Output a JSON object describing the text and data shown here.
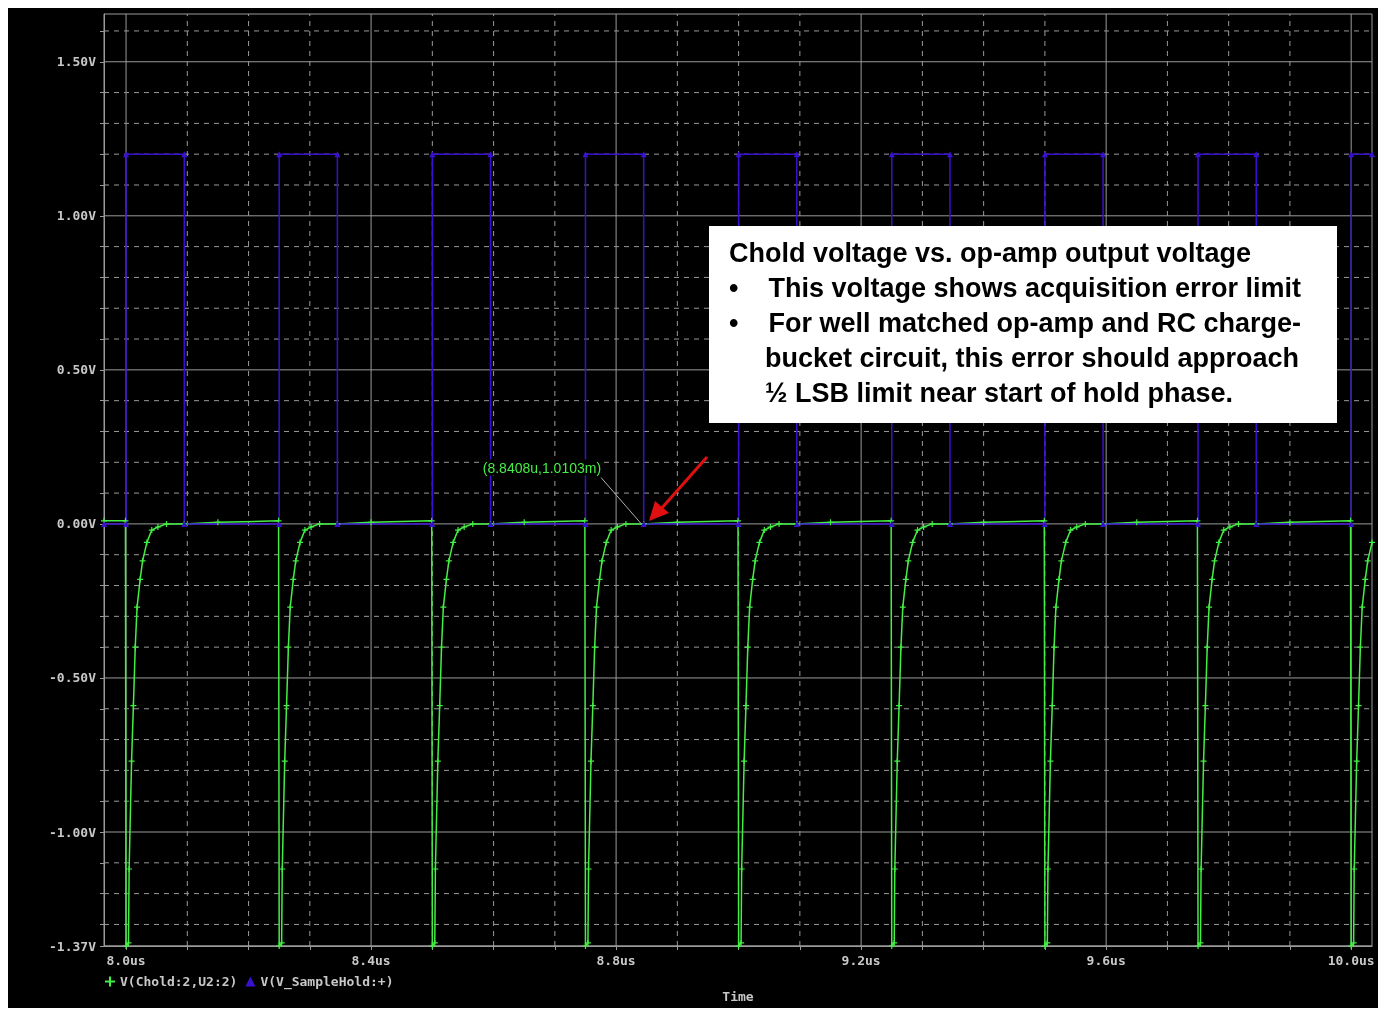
{
  "chart_data": {
    "type": "line",
    "xlabel": "Time",
    "xlim": [
      7.964,
      10.034
    ],
    "xticks": [
      {
        "value": 8.0,
        "label": "8.0us"
      },
      {
        "value": 8.1,
        "label": null
      },
      {
        "value": 8.2,
        "label": null
      },
      {
        "value": 8.3,
        "label": null
      },
      {
        "value": 8.4,
        "label": "8.4us"
      },
      {
        "value": 8.5,
        "label": null
      },
      {
        "value": 8.6,
        "label": null
      },
      {
        "value": 8.7,
        "label": null
      },
      {
        "value": 8.8,
        "label": "8.8us"
      },
      {
        "value": 8.9,
        "label": null
      },
      {
        "value": 9.0,
        "label": null
      },
      {
        "value": 9.1,
        "label": null
      },
      {
        "value": 9.2,
        "label": "9.2us"
      },
      {
        "value": 9.3,
        "label": null
      },
      {
        "value": 9.4,
        "label": null
      },
      {
        "value": 9.5,
        "label": null
      },
      {
        "value": 9.6,
        "label": "9.6us"
      },
      {
        "value": 9.7,
        "label": null
      },
      {
        "value": 9.8,
        "label": null
      },
      {
        "value": 9.9,
        "label": null
      },
      {
        "value": 10.0,
        "label": "10.0us"
      }
    ],
    "ylim": [
      -1.37,
      1.655
    ],
    "yticks": [
      {
        "value": 1.6,
        "label": null
      },
      {
        "value": 1.5,
        "label": "1.50V"
      },
      {
        "value": 1.4,
        "label": null
      },
      {
        "value": 1.3,
        "label": null
      },
      {
        "value": 1.2,
        "label": null
      },
      {
        "value": 1.1,
        "label": null
      },
      {
        "value": 1.0,
        "label": "1.00V"
      },
      {
        "value": 0.9,
        "label": null
      },
      {
        "value": 0.8,
        "label": null
      },
      {
        "value": 0.7,
        "label": null
      },
      {
        "value": 0.6,
        "label": null
      },
      {
        "value": 0.5,
        "label": "0.50V"
      },
      {
        "value": 0.4,
        "label": null
      },
      {
        "value": 0.3,
        "label": null
      },
      {
        "value": 0.2,
        "label": null
      },
      {
        "value": 0.1,
        "label": null
      },
      {
        "value": 0,
        "label": "0.00V"
      },
      {
        "value": -0.1,
        "label": null
      },
      {
        "value": -0.2,
        "label": null
      },
      {
        "value": -0.3,
        "label": null
      },
      {
        "value": -0.4,
        "label": null
      },
      {
        "value": -0.5,
        "label": "-0.50V"
      },
      {
        "value": -0.6,
        "label": null
      },
      {
        "value": -0.7,
        "label": null
      },
      {
        "value": -0.8,
        "label": null
      },
      {
        "value": -0.9,
        "label": null
      },
      {
        "value": -1.0,
        "label": "-1.00V"
      },
      {
        "value": -1.1,
        "label": null
      },
      {
        "value": -1.2,
        "label": null
      },
      {
        "value": -1.3,
        "label": null
      },
      {
        "value": -1.37,
        "label": "-1.37V"
      }
    ],
    "grid": true,
    "legend": "bottom left",
    "series": [
      {
        "name": "V(Chold:2,U2:2)",
        "color": "#44ee44",
        "marker": "cross",
        "x": [
          7.964,
          7.999,
          8.0,
          8.004,
          8.005,
          8.009,
          8.012,
          8.015,
          8.018,
          8.023,
          8.027,
          8.034,
          8.042,
          8.052,
          8.066,
          8.095,
          8.15,
          8.249,
          8.25,
          8.254,
          8.255,
          8.259,
          8.262,
          8.265,
          8.268,
          8.273,
          8.277,
          8.284,
          8.292,
          8.302,
          8.316,
          8.345,
          8.4,
          8.499,
          8.5,
          8.504,
          8.505,
          8.509,
          8.512,
          8.515,
          8.518,
          8.523,
          8.527,
          8.534,
          8.542,
          8.552,
          8.566,
          8.595,
          8.65,
          8.749,
          8.75,
          8.754,
          8.755,
          8.759,
          8.762,
          8.765,
          8.768,
          8.773,
          8.777,
          8.784,
          8.792,
          8.802,
          8.816,
          8.845,
          8.9,
          8.999,
          9.0,
          9.004,
          9.005,
          9.009,
          9.012,
          9.015,
          9.018,
          9.023,
          9.027,
          9.034,
          9.042,
          9.052,
          9.066,
          9.095,
          9.15,
          9.249,
          9.25,
          9.254,
          9.255,
          9.259,
          9.262,
          9.265,
          9.268,
          9.273,
          9.277,
          9.284,
          9.292,
          9.302,
          9.316,
          9.345,
          9.4,
          9.499,
          9.5,
          9.504,
          9.505,
          9.509,
          9.512,
          9.515,
          9.518,
          9.523,
          9.527,
          9.534,
          9.542,
          9.552,
          9.566,
          9.595,
          9.65,
          9.749,
          9.75,
          9.754,
          9.755,
          9.759,
          9.762,
          9.765,
          9.768,
          9.773,
          9.777,
          9.784,
          9.792,
          9.802,
          9.816,
          9.845,
          9.9,
          9.999,
          10.0,
          10.004,
          10.005,
          10.009,
          10.012,
          10.015,
          10.018,
          10.023,
          10.027,
          10.034
        ],
        "values": [
          0.01,
          0.01,
          -1.37,
          -1.36,
          -1.12,
          -0.77,
          -0.59,
          -0.4,
          -0.27,
          -0.18,
          -0.12,
          -0.06,
          -0.02,
          -0.01,
          0,
          0,
          0.005,
          0.01,
          -1.37,
          -1.36,
          -1.12,
          -0.77,
          -0.59,
          -0.4,
          -0.27,
          -0.18,
          -0.12,
          -0.06,
          -0.02,
          -0.01,
          0,
          0,
          0.005,
          0.01,
          -1.37,
          -1.36,
          -1.12,
          -0.77,
          -0.59,
          -0.4,
          -0.27,
          -0.18,
          -0.12,
          -0.06,
          -0.02,
          -0.01,
          0,
          0,
          0.005,
          0.01,
          -1.37,
          -1.36,
          -1.12,
          -0.77,
          -0.59,
          -0.4,
          -0.27,
          -0.18,
          -0.12,
          -0.06,
          -0.02,
          -0.01,
          0,
          0,
          0.005,
          0.01,
          -1.37,
          -1.36,
          -1.12,
          -0.77,
          -0.59,
          -0.4,
          -0.27,
          -0.18,
          -0.12,
          -0.06,
          -0.02,
          -0.01,
          0,
          0,
          0.005,
          0.01,
          -1.37,
          -1.36,
          -1.12,
          -0.77,
          -0.59,
          -0.4,
          -0.27,
          -0.18,
          -0.12,
          -0.06,
          -0.02,
          -0.01,
          0,
          0,
          0.005,
          0.01,
          -1.37,
          -1.36,
          -1.12,
          -0.77,
          -0.59,
          -0.4,
          -0.27,
          -0.18,
          -0.12,
          -0.06,
          -0.02,
          -0.01,
          0,
          0,
          0.005,
          0.01,
          -1.37,
          -1.36,
          -1.12,
          -0.77,
          -0.59,
          -0.4,
          -0.27,
          -0.18,
          -0.12,
          -0.06,
          -0.02,
          -0.01,
          0,
          0,
          0.005,
          0.01,
          -1.37,
          -1.36,
          -1.12,
          -0.77,
          -0.59,
          -0.4,
          -0.27,
          -0.18,
          -0.12,
          -0.06
        ]
      },
      {
        "name": "V(V_SampleHold:+)",
        "color": "#3a10d0",
        "marker": "triangle",
        "x": [
          7.964,
          8.0,
          8.0,
          8.095,
          8.095,
          8.25,
          8.25,
          8.345,
          8.345,
          8.5,
          8.5,
          8.595,
          8.595,
          8.75,
          8.75,
          8.845,
          8.845,
          9.0,
          9.0,
          9.095,
          9.095,
          9.25,
          9.25,
          9.345,
          9.345,
          9.5,
          9.5,
          9.595,
          9.595,
          9.75,
          9.75,
          9.845,
          9.845,
          10.0,
          10.0,
          10.034
        ],
        "values": [
          0,
          0,
          1.2,
          1.2,
          0,
          0,
          1.2,
          1.2,
          0,
          0,
          1.2,
          1.2,
          0,
          0,
          1.2,
          1.2,
          0,
          0,
          1.2,
          1.2,
          0,
          0,
          1.2,
          1.2,
          0,
          0,
          1.2,
          1.2,
          0,
          0,
          1.2,
          1.2,
          0,
          0,
          1.2,
          1.2
        ]
      }
    ],
    "annotations": [
      "Chold voltage vs. op-amp output voltage\n• This voltage shows acquisition error limit\n• For well matched op-amp and RC charge-bucket circuit, this error should approach ½ LSB limit near start of hold phase.",
      {
        "text": "(8.8408u,1.0103m)",
        "x": 8.8408,
        "y": 0.0010103
      }
    ]
  }
}
